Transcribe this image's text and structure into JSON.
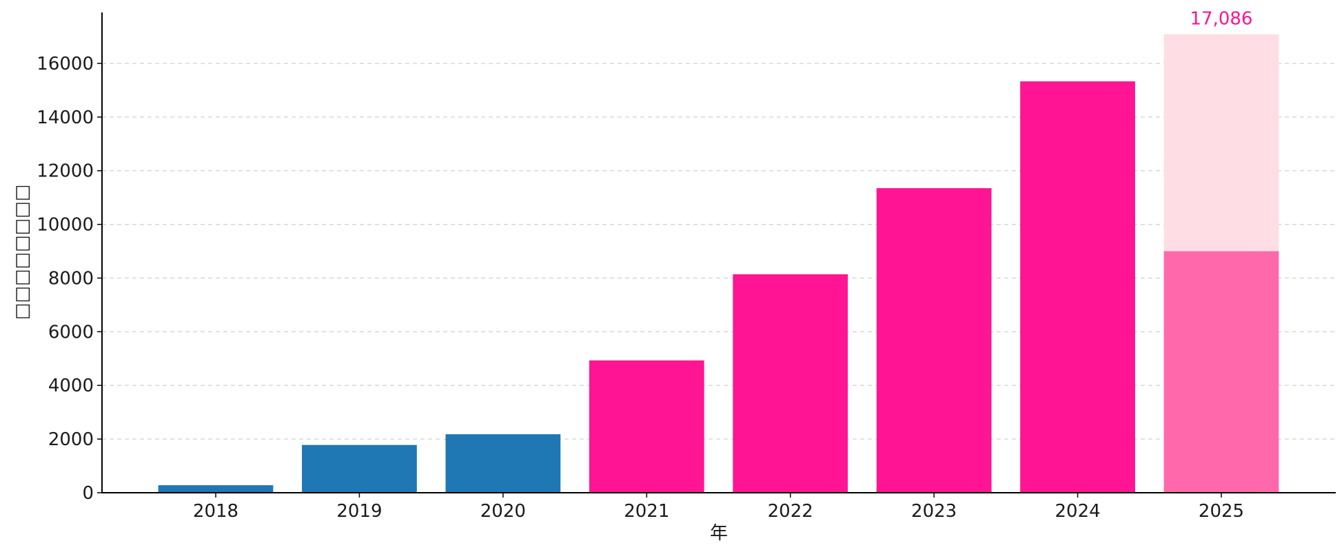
{
  "chart_data": {
    "type": "bar",
    "categories": [
      "2018",
      "2019",
      "2020",
      "2021",
      "2022",
      "2023",
      "2024",
      "2025"
    ],
    "values": [
      280,
      1780,
      2180,
      4930,
      8140,
      11350,
      15330,
      9000
    ],
    "projected_values": [
      null,
      null,
      null,
      null,
      null,
      null,
      null,
      17086
    ],
    "bar_colors": [
      "#1f77b4",
      "#1f77b4",
      "#1f77b4",
      "#ff1493",
      "#ff1493",
      "#ff1493",
      "#ff1493",
      "#ff69ac"
    ],
    "projected_color": "#ffdde4",
    "data_labels": [
      {
        "category": "2025",
        "text": "17,086",
        "color": "#ff1493"
      }
    ],
    "yticks": [
      "0",
      "2000",
      "4000",
      "6000",
      "8000",
      "10000",
      "12000",
      "14000",
      "16000"
    ],
    "ytick_values": [
      0,
      2000,
      4000,
      6000,
      8000,
      10000,
      12000,
      14000,
      16000
    ],
    "ylim": [
      0,
      17900
    ],
    "xlabel": "年",
    "ylabel": "□□□□□□□□",
    "grid": "horizontal-dashed"
  }
}
